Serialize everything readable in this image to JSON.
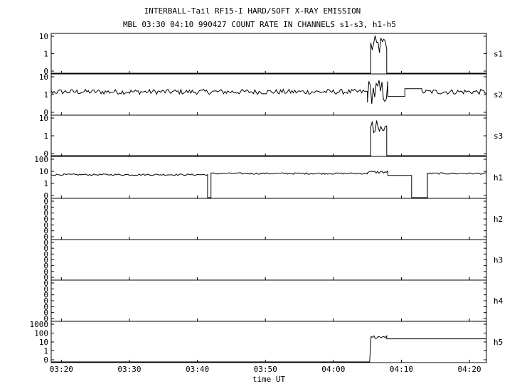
{
  "title_line1": "INTERBALL-Tail RF15-I HARD/SOFT X-RAY EMISSION",
  "title_line2": "MBL 03:30 04:10 990427  COUNT RATE IN CHANNELS s1-s3, h1-h5",
  "xlabel": "time UT",
  "chart_data": {
    "type": "line",
    "x_range": [
      "03:18:30",
      "04:22:30"
    ],
    "x_ticks": [
      "03:20",
      "03:30",
      "03:40",
      "03:50",
      "04:00",
      "04:10",
      "04:20"
    ],
    "grid": false,
    "panels": [
      {
        "name": "s1",
        "ylabels": [
          "10",
          "1",
          "0"
        ],
        "ymax_decades": 1,
        "segments": [
          {
            "from": "03:18:30",
            "to": "04:05:30",
            "level": null
          },
          {
            "from": "04:05:30",
            "to": "04:07:50",
            "level": 4,
            "noise": 0.5
          },
          {
            "from": "04:07:50",
            "to": "04:22:30",
            "level": null
          }
        ]
      },
      {
        "name": "s2",
        "ylabels": [
          "10",
          "1",
          "0"
        ],
        "ymax_decades": 1,
        "segments": [
          {
            "from": "03:18:30",
            "to": "04:05:00",
            "level": 2.3,
            "noise": 0.12
          },
          {
            "from": "04:05:00",
            "to": "04:08:00",
            "level": 2.3,
            "noise": 0.6
          },
          {
            "from": "04:08:00",
            "to": "04:10:30",
            "level": 1.4,
            "noise": 0
          },
          {
            "from": "04:10:30",
            "to": "04:13:00",
            "level": 3.2,
            "noise": 0
          },
          {
            "from": "04:13:00",
            "to": "04:22:30",
            "level": 2.3,
            "noise": 0.12
          }
        ]
      },
      {
        "name": "s3",
        "ylabels": [
          "10",
          "1",
          "0"
        ],
        "ymax_decades": 1,
        "segments": [
          {
            "from": "03:18:30",
            "to": "04:05:30",
            "level": null
          },
          {
            "from": "04:05:30",
            "to": "04:07:50",
            "level": 3,
            "noise": 0.5
          },
          {
            "from": "04:07:50",
            "to": "04:22:30",
            "level": null
          }
        ]
      },
      {
        "name": "h1",
        "ylabels": [
          "100",
          "10",
          "1",
          "0"
        ],
        "ymax_decades": 2,
        "segments": [
          {
            "from": "03:18:30",
            "to": "03:41:30",
            "level": 9,
            "noise": 0.06
          },
          {
            "from": "03:41:30",
            "to": "03:42:00",
            "level": null
          },
          {
            "from": "03:42:00",
            "to": "04:05:00",
            "level": 11,
            "noise": 0.06
          },
          {
            "from": "04:05:00",
            "to": "04:08:00",
            "level": 14,
            "noise": 0.1
          },
          {
            "from": "04:08:00",
            "to": "04:11:30",
            "level": 8,
            "noise": 0
          },
          {
            "from": "04:11:30",
            "to": "04:13:50",
            "level": null
          },
          {
            "from": "04:13:50",
            "to": "04:22:30",
            "level": 11,
            "noise": 0.06
          }
        ]
      },
      {
        "name": "h2",
        "ylabels": [
          "0",
          "0",
          "0",
          "0",
          "0",
          "0",
          "0"
        ],
        "ymax_decades": 1,
        "segments": []
      },
      {
        "name": "h3",
        "ylabels": [
          "0",
          "0",
          "0",
          "0",
          "0",
          "0",
          "0"
        ],
        "ymax_decades": 1,
        "segments": []
      },
      {
        "name": "h4",
        "ylabels": [
          "0",
          "0",
          "0",
          "0",
          "0",
          "0",
          "0"
        ],
        "ymax_decades": 1,
        "segments": []
      },
      {
        "name": "h5",
        "ylabels": [
          "1000",
          "100",
          "10",
          "1",
          "0"
        ],
        "ymax_decades": 3,
        "segments": [
          {
            "from": "03:18:30",
            "to": "04:05:20",
            "level": null
          },
          {
            "from": "04:05:20",
            "to": "04:07:50",
            "level": 60,
            "noise": 0.15,
            "dropouts": true
          },
          {
            "from": "04:07:50",
            "to": "04:22:30",
            "level": 40,
            "noise": 0
          }
        ]
      }
    ]
  }
}
